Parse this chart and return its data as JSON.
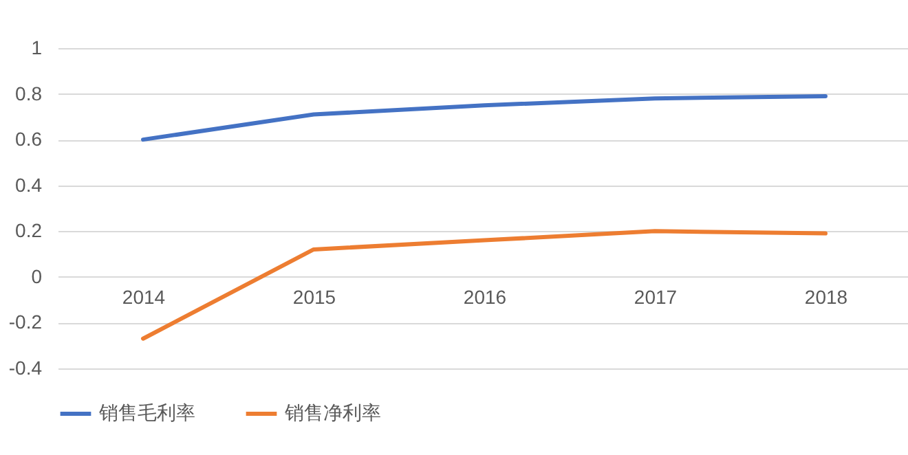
{
  "chart_data": {
    "type": "line",
    "categories": [
      "2014",
      "2015",
      "2016",
      "2017",
      "2018"
    ],
    "series": [
      {
        "name": "销售毛利率",
        "color": "#4472c4",
        "values": [
          0.6,
          0.71,
          0.75,
          0.78,
          0.79
        ]
      },
      {
        "name": "销售净利率",
        "color": "#ed7d31",
        "values": [
          -0.27,
          0.12,
          0.16,
          0.2,
          0.19
        ]
      }
    ],
    "ylim": [
      -0.4,
      1
    ],
    "yticks": [
      -0.4,
      -0.2,
      0,
      0.2,
      0.4,
      0.6,
      0.8,
      1
    ],
    "grid": "y",
    "legend": "bottom",
    "marker": "none",
    "line_style": "solid"
  }
}
